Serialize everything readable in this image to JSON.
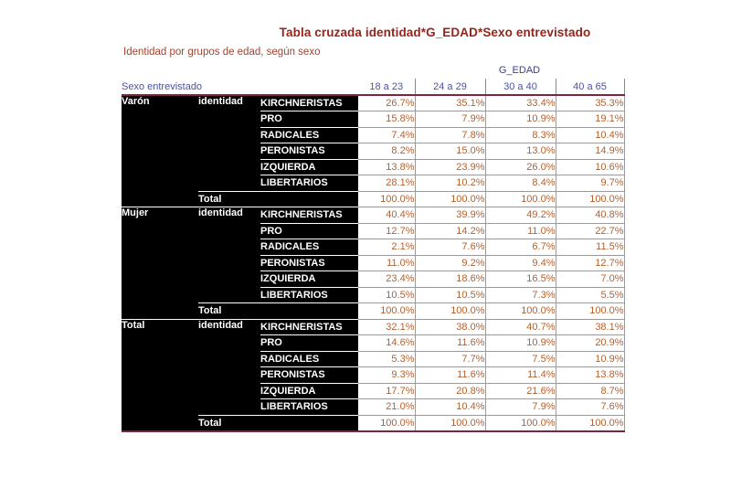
{
  "header": {
    "title": "Tabla cruzada identidad*G_EDAD*Sexo entrevistado",
    "subtitle": "Identidad por grupos de edad, según sexo"
  },
  "table": {
    "corner_label": "Sexo entrevistado",
    "layer_label": "G_EDAD",
    "row_dimension_label": "identidad",
    "total_label": "Total"
  },
  "chart_data": {
    "type": "table",
    "title": "Tabla cruzada identidad*G_EDAD*Sexo entrevistado",
    "caption": "Identidad por grupos de edad, según sexo",
    "layer": "G_EDAD",
    "columns": [
      "18 a 23",
      "24 a 29",
      "30 a 40",
      "40 a 65"
    ],
    "groups": [
      {
        "sex": "Varón",
        "rows": [
          {
            "label": "KIRCHNERISTAS",
            "values": [
              "26.7%",
              "35.1%",
              "33.4%",
              "35.3%"
            ]
          },
          {
            "label": "PRO",
            "values": [
              "15.8%",
              "7.9%",
              "10.9%",
              "19.1%"
            ]
          },
          {
            "label": "RADICALES",
            "values": [
              "7.4%",
              "7.8%",
              "8.3%",
              "10.4%"
            ]
          },
          {
            "label": "PERONISTAS",
            "values": [
              "8.2%",
              "15.0%",
              "13.0%",
              "14.9%"
            ]
          },
          {
            "label": "IZQUIERDA",
            "values": [
              "13.8%",
              "23.9%",
              "26.0%",
              "10.6%"
            ]
          },
          {
            "label": "LIBERTARIOS",
            "values": [
              "28.1%",
              "10.2%",
              "8.4%",
              "9.7%"
            ]
          }
        ],
        "total": [
          "100.0%",
          "100.0%",
          "100.0%",
          "100.0%"
        ]
      },
      {
        "sex": "Mujer",
        "rows": [
          {
            "label": "KIRCHNERISTAS",
            "values": [
              "40.4%",
              "39.9%",
              "49.2%",
              "40.8%"
            ]
          },
          {
            "label": "PRO",
            "values": [
              "12.7%",
              "14.2%",
              "11.0%",
              "22.7%"
            ]
          },
          {
            "label": "RADICALES",
            "values": [
              "2.1%",
              "7.6%",
              "6.7%",
              "11.5%"
            ]
          },
          {
            "label": "PERONISTAS",
            "values": [
              "11.0%",
              "9.2%",
              "9.4%",
              "12.7%"
            ]
          },
          {
            "label": "IZQUIERDA",
            "values": [
              "23.4%",
              "18.6%",
              "16.5%",
              "7.0%"
            ]
          },
          {
            "label": "LIBERTARIOS",
            "values": [
              "10.5%",
              "10.5%",
              "7.3%",
              "5.5%"
            ]
          }
        ],
        "total": [
          "100.0%",
          "100.0%",
          "100.0%",
          "100.0%"
        ]
      },
      {
        "sex": "Total",
        "rows": [
          {
            "label": "KIRCHNERISTAS",
            "values": [
              "32.1%",
              "38.0%",
              "40.7%",
              "38.1%"
            ]
          },
          {
            "label": "PRO",
            "values": [
              "14.6%",
              "11.6%",
              "10.9%",
              "20.9%"
            ]
          },
          {
            "label": "RADICALES",
            "values": [
              "5.3%",
              "7.7%",
              "7.5%",
              "10.9%"
            ]
          },
          {
            "label": "PERONISTAS",
            "values": [
              "9.3%",
              "11.6%",
              "11.4%",
              "13.8%"
            ]
          },
          {
            "label": "IZQUIERDA",
            "values": [
              "17.7%",
              "20.8%",
              "21.6%",
              "8.7%"
            ]
          },
          {
            "label": "LIBERTARIOS",
            "values": [
              "21.0%",
              "10.4%",
              "7.9%",
              "7.6%"
            ]
          }
        ],
        "total": [
          "100.0%",
          "100.0%",
          "100.0%",
          "100.0%"
        ]
      }
    ]
  },
  "colors": {
    "title": "#97241b",
    "subtitle": "#a04330",
    "header_blue": "#4c51a5",
    "layer_blue": "#3c418f",
    "value_text": "#b4612f",
    "rule_maroon": "#7e2440",
    "grid_gray": "#9a9a9a",
    "cell_black": "#000000",
    "background": "#ffffff"
  }
}
